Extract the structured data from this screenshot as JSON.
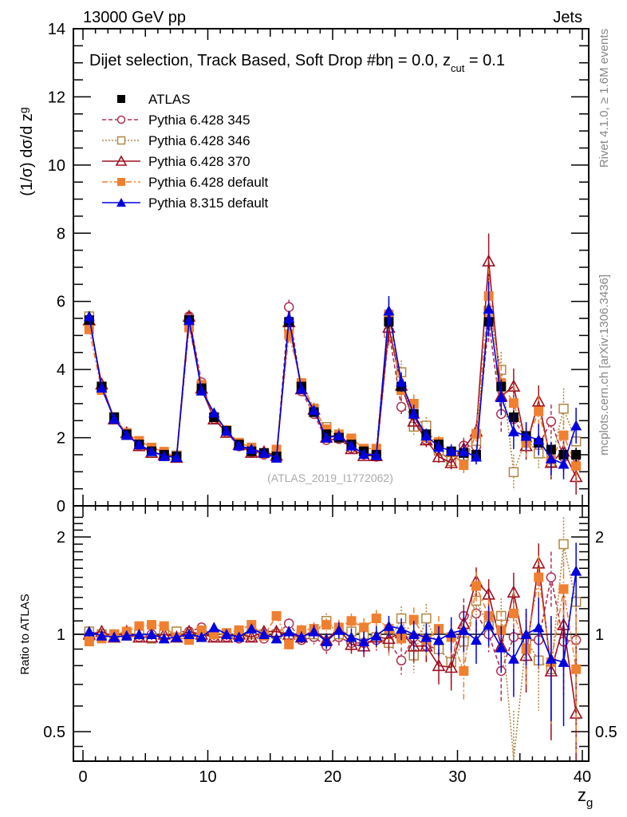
{
  "header": {
    "left_label": "13000 GeV pp",
    "right_label": "Jets"
  },
  "side_labels": {
    "rivet": "Rivet 4.1.0, ≥ 1.6M events",
    "mcplots": "mcplots.cern.ch [arXiv:1306.3436]"
  },
  "chart_data": {
    "type": "line",
    "title": "Dijet selection, Track Based, Soft Drop #bη = 0.0, z_cut = 0.1",
    "title_main": "Dijet selection, Track Based, Soft Drop #bη = 0.0, z",
    "title_sub": "cut",
    "title_tail": " = 0.1",
    "analysis_label": "(ATLAS_2019_I1772062)",
    "xlabel": "z",
    "xlabel_sub": "g",
    "ylabel": "(1/σ) dσ/d z",
    "ylabel_sub": "g",
    "ratio_ylabel": "Ratio to ATLAS",
    "xlim": [
      -1,
      41
    ],
    "ylim": [
      0,
      14
    ],
    "ratio_ylim": [
      0.42,
      2.4
    ],
    "ratio_scale": "log",
    "x_ticks": [
      "0",
      "10",
      "20",
      "30",
      "40"
    ],
    "x_tick_values": [
      0,
      10,
      20,
      30,
      40
    ],
    "y_ticks": [
      "0",
      "2",
      "4",
      "6",
      "8",
      "10",
      "12",
      "14"
    ],
    "y_tick_values": [
      0,
      2,
      4,
      6,
      8,
      10,
      12,
      14
    ],
    "ratio_ticks": [
      "0.5",
      "1",
      "2"
    ],
    "ratio_tick_values": [
      0.5,
      1,
      2
    ],
    "legend_position": "top-left",
    "x": [
      0.5,
      1.5,
      2.5,
      3.5,
      4.5,
      5.5,
      6.5,
      7.5,
      8.5,
      9.5,
      10.5,
      11.5,
      12.5,
      13.5,
      14.5,
      15.5,
      16.5,
      17.5,
      18.5,
      19.5,
      20.5,
      21.5,
      22.5,
      23.5,
      24.5,
      25.5,
      26.5,
      27.5,
      28.5,
      29.5,
      30.5,
      31.5,
      32.5,
      33.5,
      34.5,
      35.5,
      36.5,
      37.5,
      38.5,
      39.5
    ],
    "series": [
      {
        "name": "ATLAS",
        "color": "#000000",
        "marker": "filled-square",
        "line": "none",
        "values": [
          5.45,
          3.5,
          2.6,
          2.1,
          1.8,
          1.6,
          1.5,
          1.45,
          5.45,
          3.45,
          2.6,
          2.2,
          1.8,
          1.6,
          1.55,
          1.45,
          5.4,
          3.5,
          2.75,
          2.1,
          2.0,
          1.8,
          1.6,
          1.5,
          5.4,
          3.5,
          2.7,
          2.1,
          1.8,
          1.6,
          1.55,
          1.5,
          5.4,
          3.5,
          2.6,
          2.05,
          1.85,
          1.65,
          1.5,
          1.5
        ],
        "errors": [
          0.05,
          0.05,
          0.05,
          0.04,
          0.04,
          0.04,
          0.04,
          0.04,
          0.05,
          0.05,
          0.05,
          0.05,
          0.05,
          0.05,
          0.05,
          0.05,
          0.1,
          0.1,
          0.1,
          0.1,
          0.1,
          0.1,
          0.1,
          0.1,
          0.2,
          0.15,
          0.15,
          0.15,
          0.15,
          0.15,
          0.15,
          0.15,
          0.3,
          0.2,
          0.2,
          0.2,
          0.2,
          0.2,
          0.2,
          0.2
        ]
      },
      {
        "name": "Pythia 6.428 345",
        "color": "#b03050",
        "marker": "open-circle",
        "line": "dashed",
        "ratio": [
          1.02,
          0.99,
          1.0,
          1.0,
          0.98,
          1.0,
          0.98,
          1.02,
          1.02,
          1.05,
          0.98,
          0.98,
          0.97,
          0.98,
          0.97,
          1.0,
          1.08,
          0.96,
          0.98,
          0.92,
          0.98,
          0.94,
          0.94,
          0.96,
          0.95,
          0.83,
          0.98,
          0.92,
          0.9,
          0.82,
          1.14,
          1.16,
          1.0,
          0.77,
          0.98,
          0.96,
          0.96,
          1.5,
          0.95,
          0.96
        ],
        "errors_ratio": [
          0.02,
          0.02,
          0.02,
          0.02,
          0.02,
          0.02,
          0.02,
          0.02,
          0.02,
          0.02,
          0.02,
          0.02,
          0.02,
          0.02,
          0.03,
          0.03,
          0.04,
          0.04,
          0.05,
          0.05,
          0.06,
          0.06,
          0.07,
          0.07,
          0.08,
          0.08,
          0.1,
          0.1,
          0.1,
          0.12,
          0.15,
          0.15,
          0.12,
          0.15,
          0.2,
          0.2,
          0.2,
          0.3,
          0.3,
          0.3
        ]
      },
      {
        "name": "Pythia 6.428 346",
        "color": "#b08840",
        "marker": "open-square",
        "line": "dotted",
        "ratio": [
          1.02,
          1.0,
          1.0,
          0.99,
          1.0,
          0.97,
          1.0,
          1.02,
          1.0,
          0.98,
          1.0,
          1.0,
          1.0,
          1.0,
          1.0,
          1.0,
          0.98,
          1.0,
          1.0,
          1.1,
          1.0,
          1.02,
          1.0,
          0.98,
          0.94,
          1.12,
          0.86,
          1.12,
          0.9,
          0.82,
          0.95,
          1.27,
          1.06,
          1.14,
          0.38,
          0.96,
          0.83,
          0.78,
          1.9,
          1.26
        ],
        "errors_ratio": [
          0.02,
          0.02,
          0.02,
          0.02,
          0.02,
          0.02,
          0.02,
          0.02,
          0.02,
          0.02,
          0.02,
          0.02,
          0.02,
          0.02,
          0.03,
          0.03,
          0.04,
          0.04,
          0.05,
          0.06,
          0.06,
          0.06,
          0.07,
          0.08,
          0.08,
          0.1,
          0.1,
          0.12,
          0.12,
          0.15,
          0.15,
          0.15,
          0.12,
          0.15,
          0.2,
          0.2,
          0.25,
          0.3,
          0.4,
          0.3
        ]
      },
      {
        "name": "Pythia 6.428 370",
        "color": "#a01020",
        "marker": "open-triangle",
        "line": "solid",
        "ratio": [
          1.0,
          1.02,
          0.98,
          1.02,
          0.98,
          0.98,
          1.0,
          0.98,
          1.02,
          1.0,
          0.98,
          0.98,
          1.0,
          0.98,
          1.02,
          1.02,
          1.0,
          0.98,
          1.03,
          0.96,
          1.04,
          0.93,
          0.92,
          0.98,
          0.97,
          1.01,
          0.92,
          0.92,
          0.8,
          0.79,
          1.08,
          1.46,
          1.33,
          0.92,
          1.35,
          0.86,
          1.66,
          0.77,
          1.07,
          0.57
        ],
        "errors_ratio": [
          0.02,
          0.02,
          0.02,
          0.02,
          0.02,
          0.02,
          0.02,
          0.02,
          0.02,
          0.02,
          0.02,
          0.02,
          0.02,
          0.02,
          0.03,
          0.03,
          0.04,
          0.04,
          0.05,
          0.05,
          0.06,
          0.06,
          0.07,
          0.07,
          0.08,
          0.08,
          0.1,
          0.1,
          0.1,
          0.12,
          0.15,
          0.15,
          0.15,
          0.15,
          0.2,
          0.2,
          0.25,
          0.3,
          0.3,
          0.35
        ]
      },
      {
        "name": "Pythia 6.428 default",
        "color": "#f08030",
        "marker": "filled-square",
        "line": "dashdot",
        "ratio": [
          0.95,
          0.97,
          1.0,
          1.02,
          1.06,
          1.07,
          1.06,
          0.98,
          0.96,
          1.03,
          1.0,
          1.01,
          1.03,
          1.07,
          0.99,
          1.14,
          0.93,
          1.03,
          1.04,
          1.07,
          1.05,
          1.1,
          1.05,
          1.12,
          1.04,
          0.97,
          1.11,
          0.96,
          1.04,
          0.98,
          0.77,
          1.41,
          1.14,
          1.03,
          1.16,
          0.9,
          1.5,
          0.82,
          1.38,
          0.78
        ],
        "errors_ratio": [
          0.02,
          0.02,
          0.02,
          0.02,
          0.02,
          0.02,
          0.02,
          0.02,
          0.02,
          0.02,
          0.02,
          0.02,
          0.02,
          0.02,
          0.03,
          0.03,
          0.04,
          0.04,
          0.05,
          0.05,
          0.06,
          0.06,
          0.07,
          0.07,
          0.08,
          0.08,
          0.1,
          0.1,
          0.1,
          0.12,
          0.15,
          0.15,
          0.15,
          0.15,
          0.2,
          0.2,
          0.25,
          0.3,
          0.3,
          0.35
        ]
      },
      {
        "name": "Pythia 8.315 default",
        "color": "#0000e0",
        "marker": "filled-triangle",
        "line": "solid",
        "ratio": [
          1.02,
          0.99,
          0.98,
          0.99,
          1.0,
          1.0,
          0.97,
          0.98,
          1.0,
          0.98,
          1.05,
          1.0,
          0.98,
          1.04,
          1.0,
          0.97,
          1.02,
          0.98,
          1.02,
          0.95,
          1.03,
          0.98,
          0.95,
          0.99,
          1.06,
          1.04,
          1.0,
          0.98,
          0.96,
          1.01,
          1.03,
          0.96,
          1.07,
          0.91,
          0.84,
          1.0,
          1.05,
          0.84,
          0.82,
          1.57
        ],
        "errors_ratio": [
          0.02,
          0.02,
          0.02,
          0.02,
          0.02,
          0.02,
          0.02,
          0.02,
          0.02,
          0.02,
          0.02,
          0.02,
          0.02,
          0.02,
          0.03,
          0.03,
          0.04,
          0.04,
          0.05,
          0.05,
          0.06,
          0.06,
          0.07,
          0.07,
          0.08,
          0.08,
          0.1,
          0.1,
          0.1,
          0.12,
          0.15,
          0.15,
          0.15,
          0.15,
          0.2,
          0.2,
          0.25,
          0.3,
          0.3,
          0.35
        ]
      }
    ]
  }
}
